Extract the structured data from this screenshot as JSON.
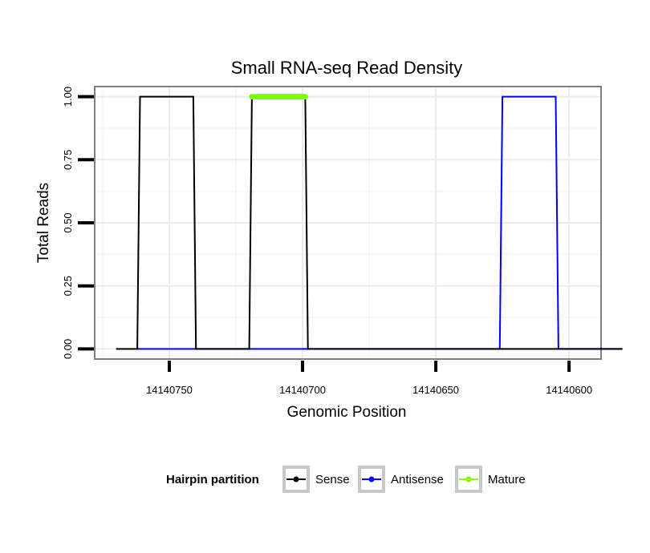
{
  "chart_data": {
    "type": "line",
    "title": "Small RNA-seq Read Density",
    "xlabel": "Genomic Position",
    "ylabel": "Total Reads",
    "x_reversed": true,
    "xlim": [
      14140778,
      14140588
    ],
    "ylim": [
      -0.04,
      1.04
    ],
    "x_ticks": [
      14140750,
      14140700,
      14140650,
      14140600
    ],
    "x_tick_labels": [
      "14140750",
      "14140700",
      "14140650",
      "14140600"
    ],
    "y_ticks": [
      0,
      0.25,
      0.5,
      0.75,
      1
    ],
    "y_tick_labels": [
      "0.00",
      "0.25",
      "0.50",
      "0.75",
      "1.00"
    ],
    "grid": true,
    "legend": {
      "title": "Hairpin partition",
      "position": "bottom",
      "entries": [
        "Sense",
        "Antisense",
        "Mature"
      ]
    },
    "series": [
      {
        "name": "Sense",
        "color": "#000000",
        "x": [
          14140770,
          14140762,
          14140761,
          14140741,
          14140740,
          14140720,
          14140719,
          14140699,
          14140698,
          14140580
        ],
        "y": [
          0,
          0,
          1,
          1,
          0,
          0,
          1,
          1,
          0,
          0
        ]
      },
      {
        "name": "Antisense",
        "color": "#0000ff",
        "x": [
          14140762,
          14140626,
          14140625,
          14140605,
          14140604,
          14140580
        ],
        "y": [
          0,
          0,
          1,
          1,
          0,
          0
        ]
      },
      {
        "name": "Mature",
        "color": "#7fff00",
        "x": [
          14140719,
          14140699
        ],
        "y": [
          1,
          1
        ]
      }
    ]
  }
}
